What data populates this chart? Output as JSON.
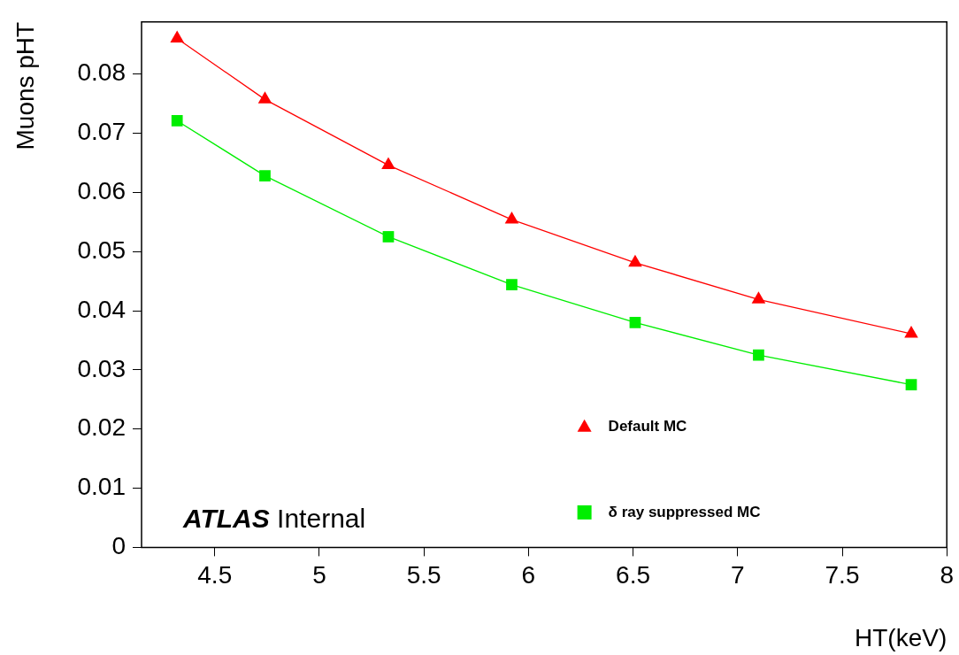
{
  "chart_data": {
    "type": "line",
    "xlabel": "HT(keV)",
    "ylabel": "Muons pHT",
    "xlim": [
      4.15,
      8
    ],
    "xticks": [
      4.5,
      5,
      5.5,
      6,
      6.5,
      7,
      7.5,
      8
    ],
    "ylim": [
      0,
      0.0888
    ],
    "yticks": [
      0,
      0.01,
      0.02,
      0.03,
      0.04,
      0.05,
      0.06,
      0.07,
      0.08
    ],
    "x": [
      4.32,
      4.74,
      5.33,
      5.92,
      6.51,
      7.1,
      7.83
    ],
    "series": [
      {
        "name": "Default MC",
        "color": "#ff0000",
        "marker": "triangle",
        "values": [
          0.086,
          0.0757,
          0.0646,
          0.0554,
          0.0481,
          0.0419,
          0.0361
        ]
      },
      {
        "name": "δ ray suppressed MC",
        "color": "#00ee00",
        "marker": "square",
        "values": [
          0.0721,
          0.0628,
          0.0525,
          0.0444,
          0.038,
          0.0325,
          0.0275
        ]
      }
    ],
    "legend": "bottom right",
    "grid": false,
    "line_style": "solid",
    "annotations": [
      "ATLAS Internal"
    ]
  }
}
